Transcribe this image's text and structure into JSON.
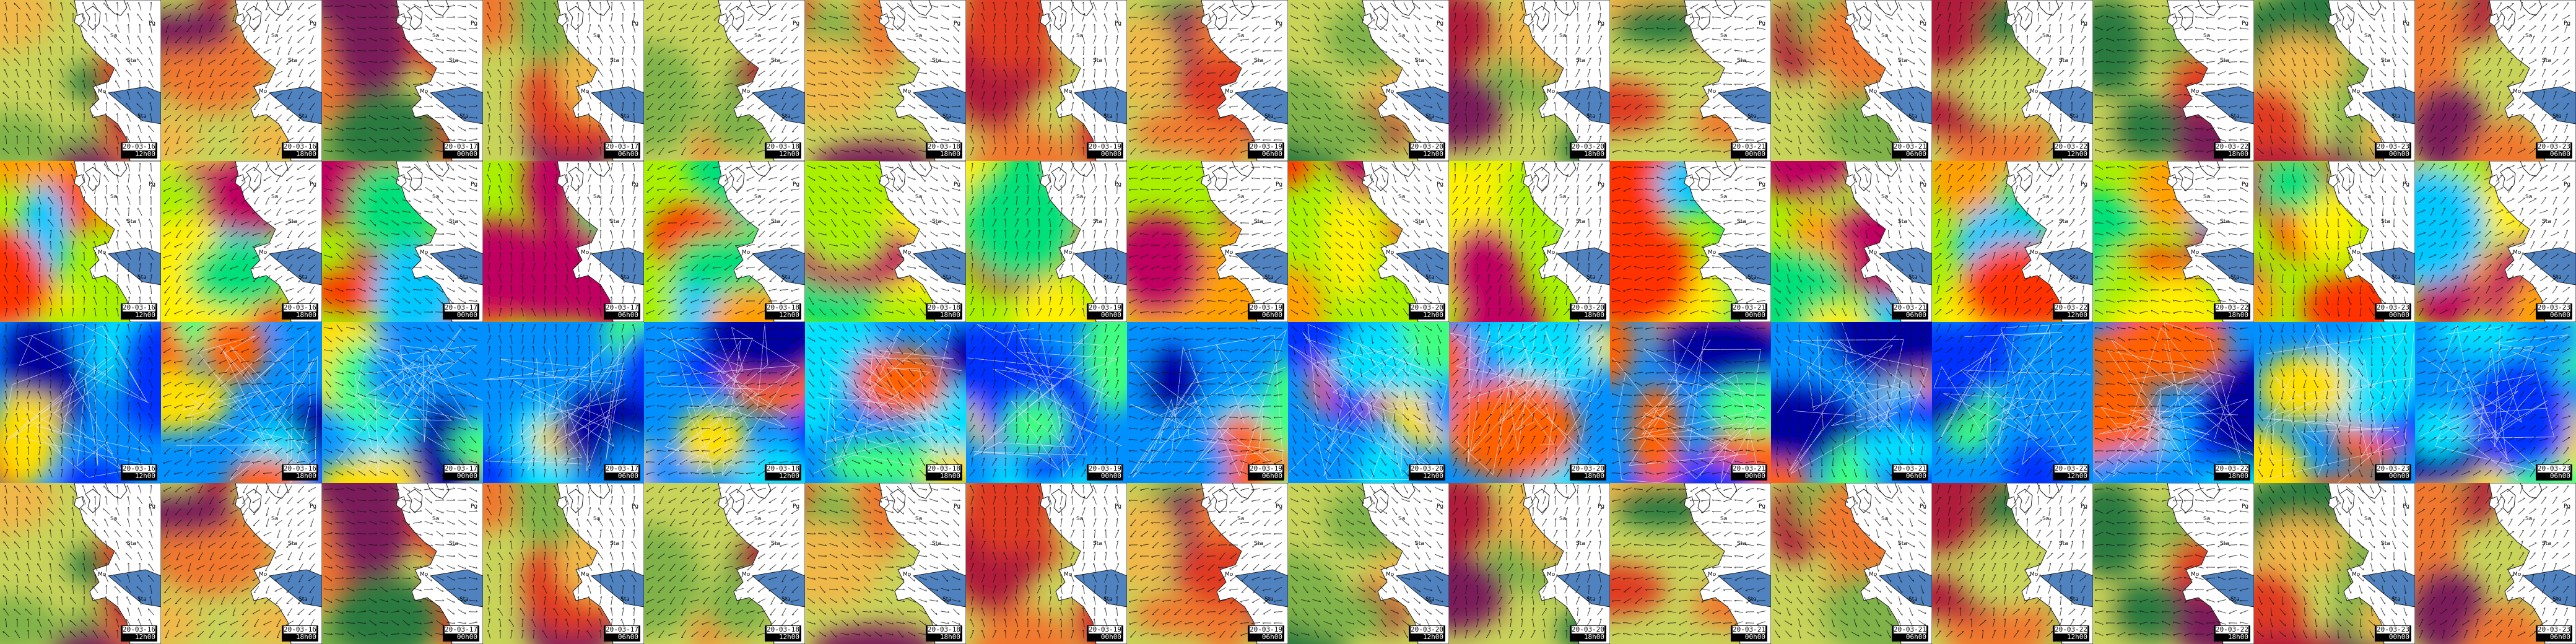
{
  "title": "",
  "colors": {
    "sea": "#4f82bf",
    "land": "#ffffff",
    "coast": "#1b1b1b",
    "label": "#000000",
    "stamp_bg": "#000000"
  },
  "palettes": {
    "temperature": [
      "#2b7a3f",
      "#7fb24a",
      "#c8d35a",
      "#f0b84a",
      "#f0782e",
      "#e03a24",
      "#b01a3a",
      "#7a1a5a"
    ],
    "wind": [
      "#00c8ff",
      "#00e07a",
      "#a8f000",
      "#fff000",
      "#ffa000",
      "#ff3000",
      "#c00060"
    ],
    "jet": [
      "#0000a0",
      "#0030ff",
      "#0090ff",
      "#00e0ff",
      "#40ff80",
      "#ffe000",
      "#ff6000"
    ]
  },
  "icons": {
    "wind_barb": "wind-barb-icon"
  },
  "rows": [
    {
      "name": "temperature",
      "palette": "temperature",
      "view": "regional"
    },
    {
      "name": "wind-speed",
      "palette": "wind",
      "view": "regional"
    },
    {
      "name": "upper-wind",
      "palette": "jet",
      "view": "continental"
    },
    {
      "name": "temperature-repeat",
      "palette": "temperature",
      "view": "regional"
    }
  ],
  "frames": [
    {
      "date": "20-03-16",
      "time": "12h00"
    },
    {
      "date": "20-03-16",
      "time": "18h00"
    },
    {
      "date": "20-03-17",
      "time": "00h00"
    },
    {
      "date": "20-03-17",
      "time": "06h00"
    },
    {
      "date": "20-03-18",
      "time": "12h00"
    },
    {
      "date": "20-03-18",
      "time": "18h00"
    },
    {
      "date": "20-03-19",
      "time": "00h00"
    },
    {
      "date": "20-03-19",
      "time": "06h00"
    },
    {
      "date": "20-03-20",
      "time": "12h00"
    },
    {
      "date": "20-03-20",
      "time": "18h00"
    },
    {
      "date": "20-03-21",
      "time": "00h00"
    },
    {
      "date": "20-03-21",
      "time": "06h00"
    },
    {
      "date": "20-03-22",
      "time": "12h00"
    },
    {
      "date": "20-03-22",
      "time": "18h00"
    },
    {
      "date": "20-03-23",
      "time": "00h00"
    },
    {
      "date": "20-03-23",
      "time": "06h00"
    }
  ],
  "place_labels": [
    "Sa",
    "Sta",
    "Mo",
    "Sta",
    "Pg"
  ]
}
